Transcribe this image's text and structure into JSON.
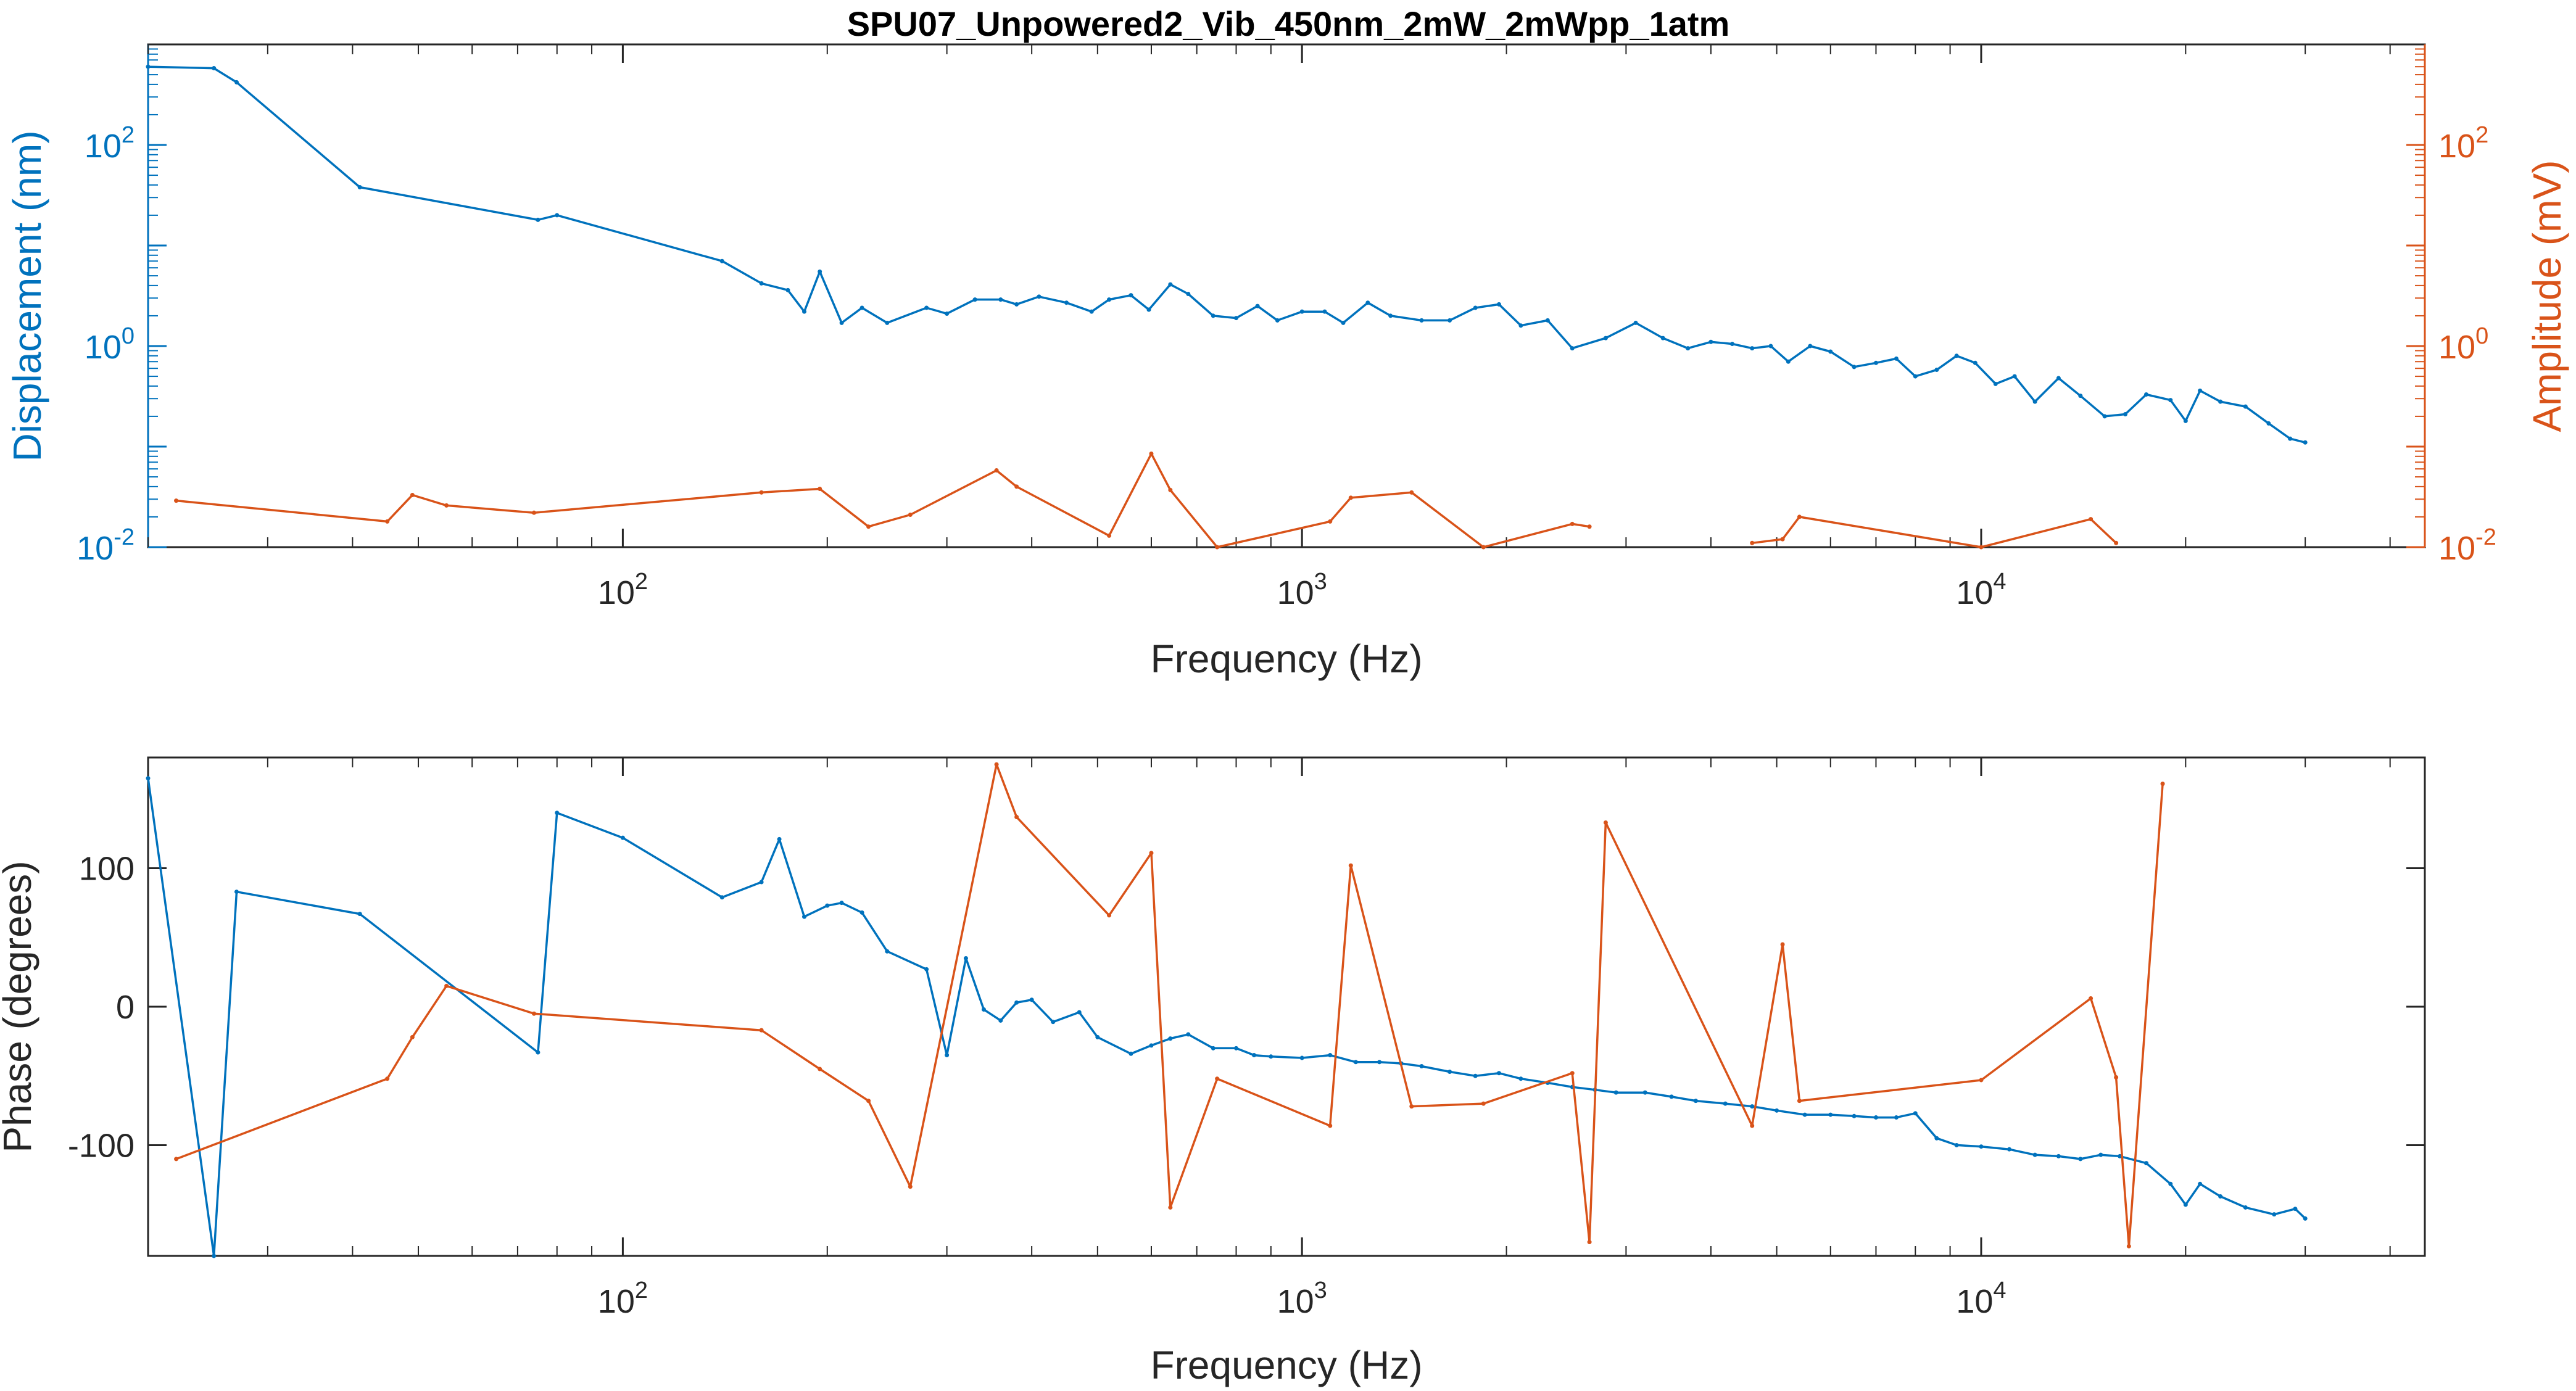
{
  "figure": {
    "title": "SPU07_Unpowered2_Vib_450nm_2mW_2mWpp_1atm"
  },
  "colors": {
    "blue": "#0072BD",
    "orange": "#D95319",
    "axis": "#262626",
    "background": "#ffffff"
  },
  "chart_data": [
    {
      "type": "line",
      "title": "SPU07_Unpowered2_Vib_450nm_2mW_2mWpp_1atm",
      "xlabel": "Frequency (Hz)",
      "ylabel": "Displacement (nm)",
      "ylabel_right": "Amplitude (mV)",
      "xscale": "log",
      "yscale": "log",
      "xlim": [
        20,
        45000
      ],
      "ylim": [
        0.01,
        1000
      ],
      "ylim_right": [
        0.01,
        1000
      ],
      "grid": false,
      "xticks": [
        100,
        1000,
        10000
      ],
      "xtick_labels": [
        {
          "base": "10",
          "exp": "2"
        },
        {
          "base": "10",
          "exp": "3"
        },
        {
          "base": "10",
          "exp": "4"
        }
      ],
      "yticks": [
        0.01,
        1,
        100
      ],
      "ytick_labels": [
        {
          "base": "10",
          "exp": "-2"
        },
        {
          "base": "10",
          "exp": "0"
        },
        {
          "base": "10",
          "exp": "2"
        }
      ],
      "ytick_labels_right": [
        {
          "base": "10",
          "exp": "-2"
        },
        {
          "base": "10",
          "exp": "0"
        },
        {
          "base": "10",
          "exp": "2"
        }
      ],
      "series": [
        {
          "axis": "left",
          "color": "#0072BD",
          "x": [
            20,
            25,
            27,
            41,
            75,
            80,
            140,
            160,
            175,
            185,
            195,
            210,
            225,
            245,
            280,
            300,
            330,
            360,
            380,
            410,
            450,
            490,
            520,
            560,
            595,
            640,
            680,
            740,
            800,
            860,
            920,
            1000,
            1080,
            1150,
            1250,
            1350,
            1500,
            1650,
            1800,
            1950,
            2100,
            2300,
            2500,
            2800,
            3100,
            3400,
            3700,
            4000,
            4300,
            4600,
            4900,
            5200,
            5600,
            6000,
            6500,
            7000,
            7500,
            8000,
            8600,
            9200,
            9800,
            10500,
            11200,
            12000,
            13000,
            14000,
            15200,
            16300,
            17500,
            19000,
            20000,
            21000,
            22500,
            24500,
            26500,
            28500,
            30000
          ],
          "y": [
            600,
            580,
            420,
            38,
            18,
            20,
            7,
            4.2,
            3.6,
            2.2,
            5.5,
            1.7,
            2.4,
            1.7,
            2.4,
            2.1,
            2.9,
            2.9,
            2.6,
            3.1,
            2.7,
            2.2,
            2.9,
            3.2,
            2.3,
            4.1,
            3.3,
            2,
            1.9,
            2.5,
            1.8,
            2.2,
            2.2,
            1.7,
            2.7,
            2,
            1.8,
            1.8,
            2.4,
            2.6,
            1.6,
            1.8,
            0.95,
            1.2,
            1.7,
            1.2,
            0.95,
            1.1,
            1.05,
            0.95,
            1,
            0.7,
            1,
            0.88,
            0.62,
            0.68,
            0.75,
            0.5,
            0.58,
            0.8,
            0.68,
            0.42,
            0.5,
            0.28,
            0.48,
            0.32,
            0.2,
            0.21,
            0.33,
            0.29,
            0.18,
            0.36,
            0.28,
            0.25,
            0.17,
            0.12,
            0.11
          ]
        },
        {
          "axis": "right",
          "color": "#D95319",
          "x": [
            22,
            45,
            49,
            55,
            74,
            160,
            195,
            230,
            265,
            355,
            380,
            520,
            600,
            640,
            750,
            1100,
            1180,
            1450,
            1850,
            2500,
            2650,
            2800,
            4100,
            4600,
            5100,
            5400,
            10000,
            14500,
            15800,
            17000,
            18500
          ],
          "y": [
            0.029,
            0.018,
            0.033,
            0.026,
            0.022,
            0.035,
            0.038,
            0.016,
            0.021,
            0.058,
            0.04,
            0.013,
            0.085,
            0.037,
            0.01,
            0.018,
            0.031,
            0.035,
            0.01,
            0.017,
            0.016,
            0.008,
            0.008,
            0.011,
            0.012,
            0.02,
            0.01,
            0.019,
            0.011,
            0.009,
            0.009
          ]
        }
      ]
    },
    {
      "type": "line",
      "xlabel": "Frequency (Hz)",
      "ylabel": "Phase (degrees)",
      "xscale": "log",
      "xlim": [
        20,
        45000
      ],
      "ylim": [
        -180,
        180
      ],
      "grid": false,
      "xticks": [
        100,
        1000,
        10000
      ],
      "xtick_labels": [
        {
          "base": "10",
          "exp": "2"
        },
        {
          "base": "10",
          "exp": "3"
        },
        {
          "base": "10",
          "exp": "4"
        }
      ],
      "yticks": [
        -100,
        0,
        100
      ],
      "ytick_labels": [
        "-100",
        "0",
        "100"
      ],
      "series": [
        {
          "axis": "left",
          "color": "#0072BD",
          "x": [
            20,
            25,
            27,
            41,
            75,
            80,
            100,
            140,
            160,
            170,
            185,
            200,
            210,
            225,
            245,
            280,
            300,
            320,
            340,
            360,
            380,
            400,
            430,
            470,
            500,
            560,
            600,
            640,
            680,
            740,
            800,
            850,
            900,
            1000,
            1100,
            1200,
            1300,
            1400,
            1500,
            1650,
            1800,
            1950,
            2100,
            2300,
            2500,
            2700,
            2900,
            3200,
            3500,
            3800,
            4200,
            4600,
            5000,
            5500,
            6000,
            6500,
            7000,
            7500,
            8000,
            8600,
            9200,
            10000,
            11000,
            12000,
            13000,
            14000,
            15000,
            16000,
            17500,
            19000,
            20000,
            21000,
            22500,
            24500,
            27000,
            29000,
            30000
          ],
          "y": [
            165,
            -180,
            83,
            67,
            -33,
            140,
            122,
            79,
            90,
            121,
            65,
            73,
            75,
            68,
            40,
            27,
            -35,
            35,
            -2,
            -10,
            3,
            5,
            -11,
            -4,
            -22,
            -34,
            -28,
            -23,
            -20,
            -30,
            -30,
            -35,
            -36,
            -37,
            -35,
            -40,
            -40,
            -41,
            -43,
            -47,
            -50,
            -48,
            -52,
            -55,
            -58,
            -60,
            -62,
            -62,
            -65,
            -68,
            -70,
            -72,
            -75,
            -78,
            -78,
            -79,
            -80,
            -80,
            -77,
            -95,
            -100,
            -101,
            -103,
            -107,
            -108,
            -110,
            -107,
            -108,
            -113,
            -128,
            -143,
            -128,
            -137,
            -145,
            -150,
            -146,
            -153
          ]
        },
        {
          "axis": "left",
          "color": "#D95319",
          "x": [
            22,
            45,
            49,
            55,
            74,
            160,
            195,
            230,
            265,
            355,
            380,
            520,
            600,
            640,
            750,
            1100,
            1180,
            1450,
            1850,
            2500,
            2650,
            2800,
            4600,
            5100,
            5400,
            10000,
            14500,
            15800,
            16500,
            18500
          ],
          "y": [
            -110,
            -52,
            -22,
            15,
            -5,
            -17,
            -45,
            -68,
            -130,
            175,
            137,
            66,
            111,
            -145,
            -52,
            -86,
            102,
            -72,
            -70,
            -48,
            -170,
            133,
            -86,
            45,
            -68,
            -53,
            6,
            -51,
            -173,
            161
          ]
        }
      ]
    }
  ]
}
